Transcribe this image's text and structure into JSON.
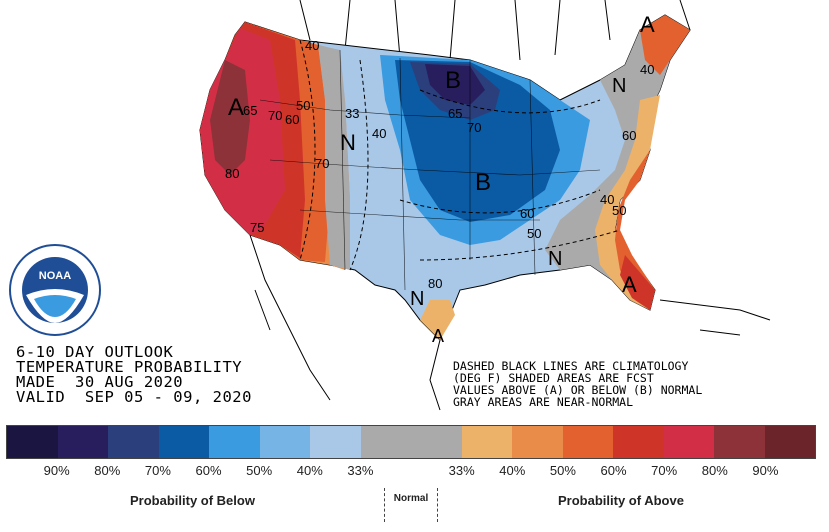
{
  "outlook": {
    "line1": "6-10 DAY OUTLOOK",
    "line2": "TEMPERATURE PROBABILITY",
    "line3": "MADE  30 AUG 2020",
    "line4": "VALID  SEP 05 - 09, 2020"
  },
  "legend_note": {
    "line1": "DASHED BLACK LINES ARE CLIMATOLOGY",
    "line2": "(DEG F) SHADED AREAS ARE FCST",
    "line3": "VALUES ABOVE (A) OR BELOW (B) NORMAL",
    "line4": "GRAY AREAS ARE NEAR-NORMAL"
  },
  "logo": {
    "text": "NOAA",
    "icon": "noaa-seal-icon"
  },
  "legend": {
    "swatches": [
      {
        "color": "#1b1541"
      },
      {
        "color": "#281e5d"
      },
      {
        "color": "#2b3f7d"
      },
      {
        "color": "#0b5aa4"
      },
      {
        "color": "#3a9be0"
      },
      {
        "color": "#76b4e6"
      },
      {
        "color": "#a9c8e8"
      },
      {
        "color": "#aaaaaa"
      },
      {
        "color": "#aaaaaa"
      },
      {
        "color": "#ecb26a"
      },
      {
        "color": "#e98c4a"
      },
      {
        "color": "#e2612f"
      },
      {
        "color": "#cf3429"
      },
      {
        "color": "#d22f47"
      },
      {
        "color": "#8e3239"
      },
      {
        "color": "#6b2429"
      }
    ],
    "ticks": [
      "90%",
      "80%",
      "70%",
      "60%",
      "50%",
      "40%",
      "33%",
      "33%",
      "40%",
      "50%",
      "60%",
      "70%",
      "80%",
      "90%"
    ],
    "below_label": "Probability of Below",
    "normal_label": "Normal",
    "above_label": "Probability of Above"
  },
  "map": {
    "labels": {
      "A_west": "A",
      "A_ne": "A",
      "A_se": "A",
      "A_tx": "A",
      "B_north": "B",
      "B_central": "B",
      "N_mountain": "N",
      "N_ne": "N",
      "N_south": "N",
      "N_tx": "N",
      "c40a": "40",
      "c65": "65",
      "c70a": "70",
      "c60a": "60",
      "c50a": "50",
      "c80": "80",
      "c70b": "70",
      "c33": "33",
      "c40b": "40",
      "c65b": "65",
      "c70c": "70",
      "c75": "75",
      "c60b": "60",
      "c50b": "50",
      "c80b": "80",
      "c40c": "40",
      "c50c": "50",
      "c40d": "40",
      "c60c": "60"
    }
  }
}
